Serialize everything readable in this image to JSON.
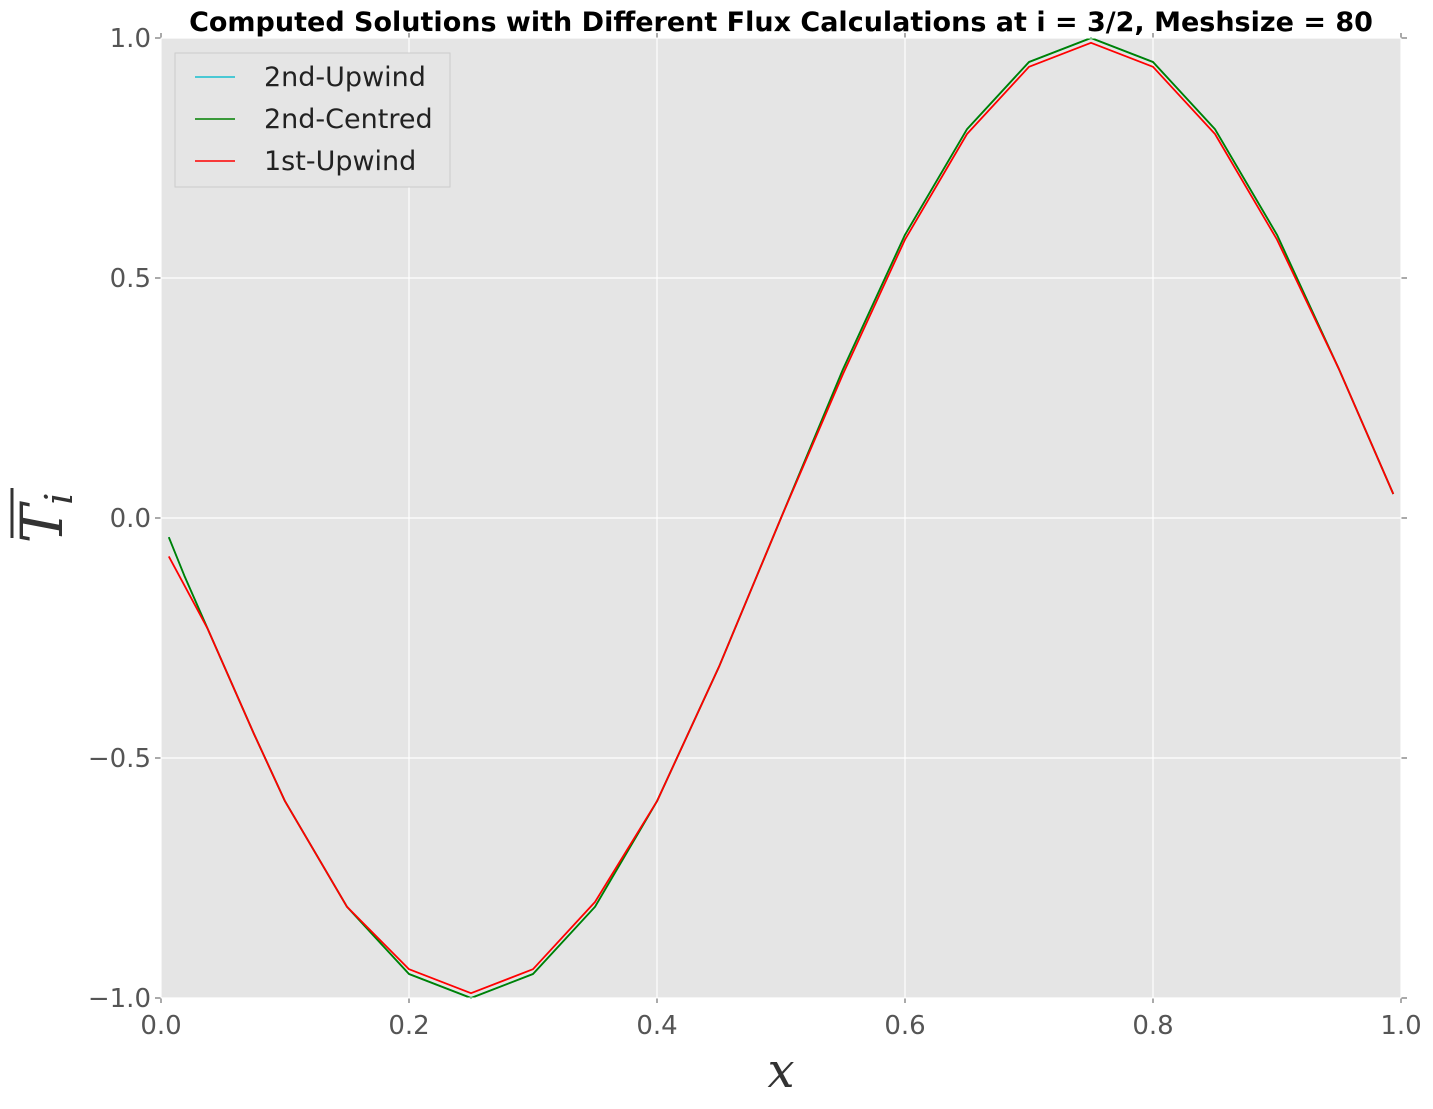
{
  "chart_data": {
    "type": "line",
    "title": "Computed Solutions with Different Flux Calculations at i = 3/2, Meshsize = 80",
    "xlabel": "x",
    "ylabel": "T̄i",
    "ylabel_main": "T",
    "ylabel_sub": "i",
    "xlim": [
      0.0,
      1.0
    ],
    "ylim": [
      -1.0,
      1.0
    ],
    "xticks": [
      0.0,
      0.2,
      0.4,
      0.6,
      0.8,
      1.0
    ],
    "xtick_labels": [
      "0.0",
      "0.2",
      "0.4",
      "0.6",
      "0.8",
      "1.0"
    ],
    "yticks": [
      -1.0,
      -0.5,
      0.0,
      0.5,
      1.0
    ],
    "ytick_labels": [
      "−1.0",
      "−0.5",
      "0.0",
      "0.5",
      "1.0"
    ],
    "grid": true,
    "legend_position": "top-left",
    "background": "#e5e5e5",
    "x": [
      0.00625,
      0.01875,
      0.0375,
      0.075,
      0.1,
      0.15,
      0.2,
      0.25,
      0.3,
      0.35,
      0.4,
      0.45,
      0.5,
      0.55,
      0.6,
      0.65,
      0.7,
      0.75,
      0.8,
      0.85,
      0.9,
      0.95,
      0.99375
    ],
    "series": [
      {
        "name": "2nd-Upwind",
        "color": "#17becf",
        "values": [
          -0.04,
          -0.12,
          -0.23,
          -0.45,
          -0.59,
          -0.81,
          -0.95,
          -1.0,
          -0.95,
          -0.81,
          -0.59,
          -0.31,
          0.0,
          0.31,
          0.59,
          0.81,
          0.95,
          1.0,
          0.95,
          0.81,
          0.59,
          0.31,
          0.05
        ]
      },
      {
        "name": "2nd-Centred",
        "color": "#008000",
        "values": [
          -0.04,
          -0.12,
          -0.23,
          -0.45,
          -0.59,
          -0.81,
          -0.95,
          -1.0,
          -0.95,
          -0.81,
          -0.59,
          -0.31,
          0.0,
          0.31,
          0.59,
          0.81,
          0.95,
          1.0,
          0.95,
          0.81,
          0.59,
          0.31,
          0.05
        ]
      },
      {
        "name": "1st-Upwind",
        "color": "#ff0000",
        "values": [
          -0.08,
          -0.14,
          -0.23,
          -0.45,
          -0.59,
          -0.81,
          -0.94,
          -0.99,
          -0.94,
          -0.8,
          -0.59,
          -0.31,
          0.0,
          0.3,
          0.58,
          0.8,
          0.94,
          0.99,
          0.94,
          0.8,
          0.58,
          0.31,
          0.05
        ]
      }
    ]
  }
}
